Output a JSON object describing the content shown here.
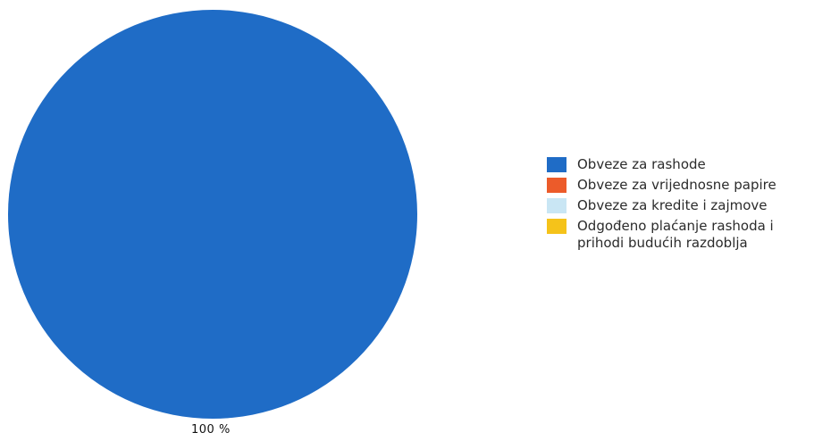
{
  "chart_data": {
    "type": "pie",
    "categories": [
      "Obveze za rashode",
      "Obveze za vrijednosne papire",
      "Obveze za kredite i zajmove",
      "Odgođeno plaćanje rashoda i prihodi budućih razdoblja"
    ],
    "values": [
      100,
      0,
      0,
      0
    ],
    "colors": [
      "#1f6cc6",
      "#ec5b2a",
      "#c9e6f4",
      "#f5c31a"
    ],
    "data_labels": [
      "100 %"
    ],
    "legend_position": "right"
  }
}
